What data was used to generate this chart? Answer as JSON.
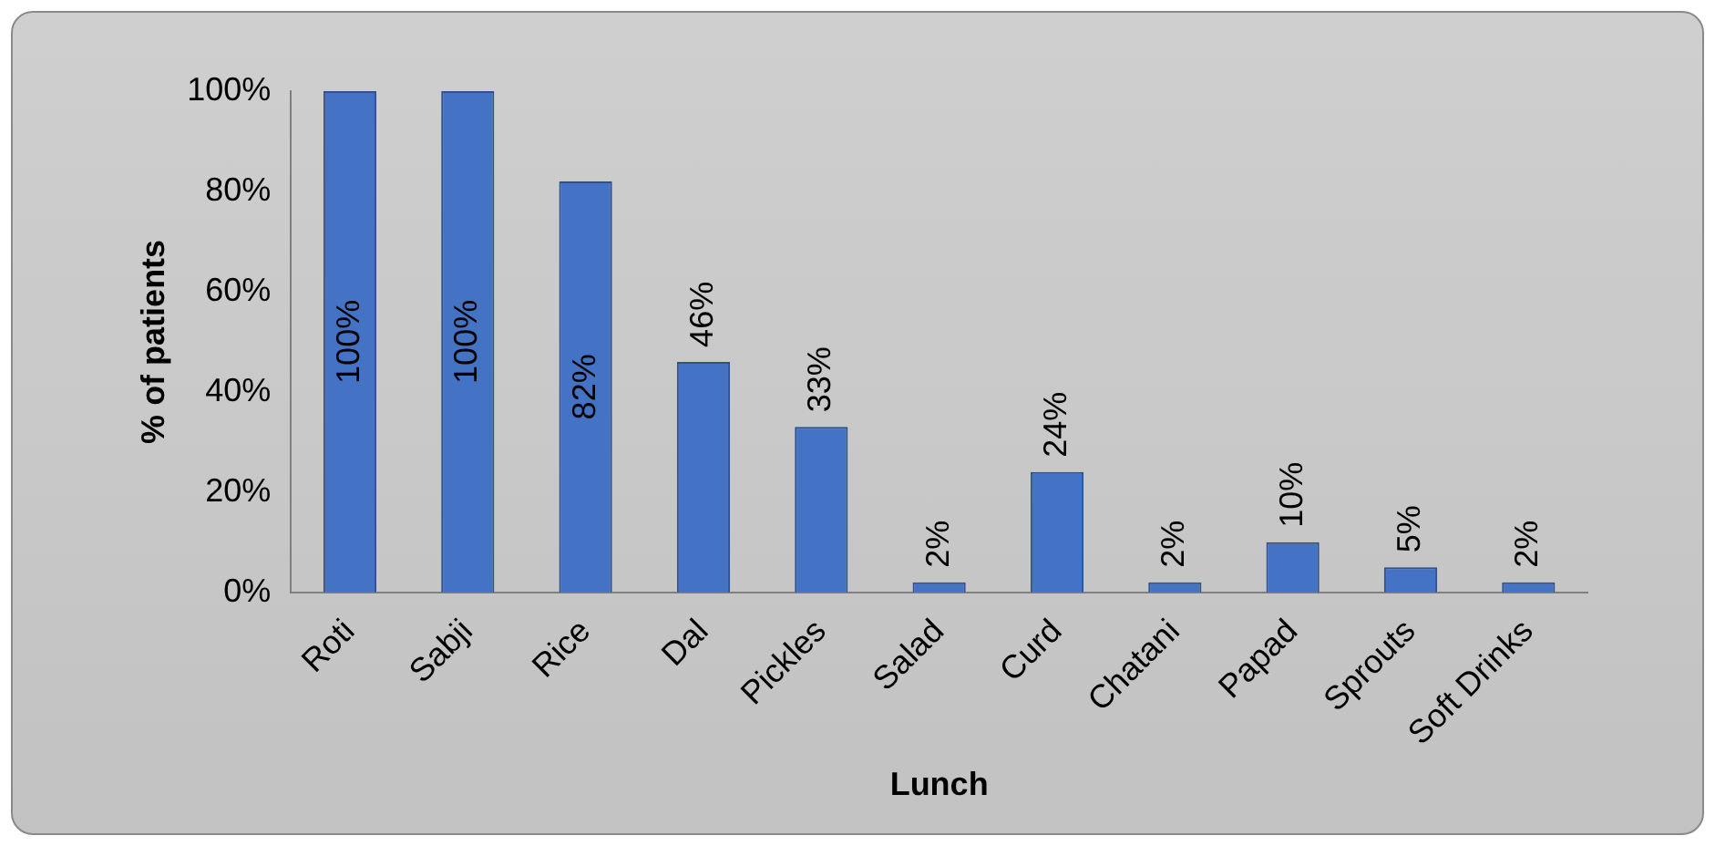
{
  "chart_data": {
    "type": "bar",
    "xlabel": "Lunch",
    "ylabel": "% of patients",
    "categories": [
      "Roti",
      "Sabji",
      "Rice",
      "Dal",
      "Pickles",
      "Salad",
      "Curd",
      "Chatani",
      "Papad",
      "Sprouts",
      "Soft Drinks"
    ],
    "values": [
      100,
      100,
      82,
      46,
      33,
      2,
      24,
      2,
      10,
      5,
      2
    ],
    "value_labels": [
      "100%",
      "100%",
      "82%",
      "46%",
      "33%",
      "2%",
      "24%",
      "2%",
      "10%",
      "5%",
      "2%"
    ],
    "color": "#4472c4",
    "ylim": [
      0,
      100
    ],
    "yticks": [
      {
        "value": 0,
        "label": "0%"
      },
      {
        "value": 20,
        "label": "20%"
      },
      {
        "value": 40,
        "label": "40%"
      },
      {
        "value": 60,
        "label": "60%"
      },
      {
        "value": 80,
        "label": "80%"
      },
      {
        "value": 100,
        "label": "100%"
      }
    ],
    "grid": false,
    "legend": false
  }
}
